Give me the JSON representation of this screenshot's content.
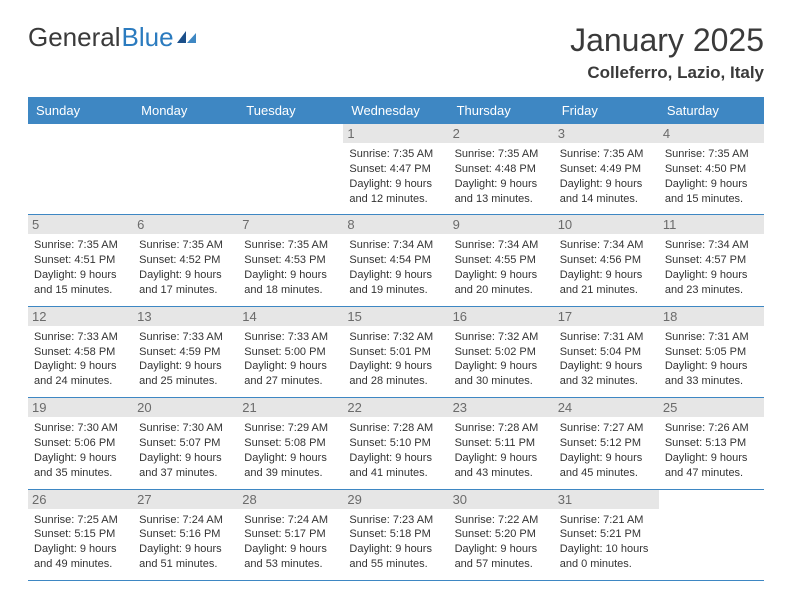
{
  "logo": {
    "text1": "General",
    "text2": "Blue"
  },
  "title": "January 2025",
  "location": "Colleferro, Lazio, Italy",
  "colors": {
    "header_bg": "#3e87c3",
    "header_text": "#ffffff",
    "daynum_bg": "#e6e6e6",
    "daynum_text": "#6b6b6b",
    "body_text": "#333333",
    "divider": "#3e87c3",
    "logo_gray": "#3a3a3a",
    "logo_blue": "#2b7bbf"
  },
  "day_names": [
    "Sunday",
    "Monday",
    "Tuesday",
    "Wednesday",
    "Thursday",
    "Friday",
    "Saturday"
  ],
  "weeks": [
    [
      null,
      null,
      null,
      {
        "n": "1",
        "sr": "7:35 AM",
        "ss": "4:47 PM",
        "dl": "9 hours and 12 minutes."
      },
      {
        "n": "2",
        "sr": "7:35 AM",
        "ss": "4:48 PM",
        "dl": "9 hours and 13 minutes."
      },
      {
        "n": "3",
        "sr": "7:35 AM",
        "ss": "4:49 PM",
        "dl": "9 hours and 14 minutes."
      },
      {
        "n": "4",
        "sr": "7:35 AM",
        "ss": "4:50 PM",
        "dl": "9 hours and 15 minutes."
      }
    ],
    [
      {
        "n": "5",
        "sr": "7:35 AM",
        "ss": "4:51 PM",
        "dl": "9 hours and 15 minutes."
      },
      {
        "n": "6",
        "sr": "7:35 AM",
        "ss": "4:52 PM",
        "dl": "9 hours and 17 minutes."
      },
      {
        "n": "7",
        "sr": "7:35 AM",
        "ss": "4:53 PM",
        "dl": "9 hours and 18 minutes."
      },
      {
        "n": "8",
        "sr": "7:34 AM",
        "ss": "4:54 PM",
        "dl": "9 hours and 19 minutes."
      },
      {
        "n": "9",
        "sr": "7:34 AM",
        "ss": "4:55 PM",
        "dl": "9 hours and 20 minutes."
      },
      {
        "n": "10",
        "sr": "7:34 AM",
        "ss": "4:56 PM",
        "dl": "9 hours and 21 minutes."
      },
      {
        "n": "11",
        "sr": "7:34 AM",
        "ss": "4:57 PM",
        "dl": "9 hours and 23 minutes."
      }
    ],
    [
      {
        "n": "12",
        "sr": "7:33 AM",
        "ss": "4:58 PM",
        "dl": "9 hours and 24 minutes."
      },
      {
        "n": "13",
        "sr": "7:33 AM",
        "ss": "4:59 PM",
        "dl": "9 hours and 25 minutes."
      },
      {
        "n": "14",
        "sr": "7:33 AM",
        "ss": "5:00 PM",
        "dl": "9 hours and 27 minutes."
      },
      {
        "n": "15",
        "sr": "7:32 AM",
        "ss": "5:01 PM",
        "dl": "9 hours and 28 minutes."
      },
      {
        "n": "16",
        "sr": "7:32 AM",
        "ss": "5:02 PM",
        "dl": "9 hours and 30 minutes."
      },
      {
        "n": "17",
        "sr": "7:31 AM",
        "ss": "5:04 PM",
        "dl": "9 hours and 32 minutes."
      },
      {
        "n": "18",
        "sr": "7:31 AM",
        "ss": "5:05 PM",
        "dl": "9 hours and 33 minutes."
      }
    ],
    [
      {
        "n": "19",
        "sr": "7:30 AM",
        "ss": "5:06 PM",
        "dl": "9 hours and 35 minutes."
      },
      {
        "n": "20",
        "sr": "7:30 AM",
        "ss": "5:07 PM",
        "dl": "9 hours and 37 minutes."
      },
      {
        "n": "21",
        "sr": "7:29 AM",
        "ss": "5:08 PM",
        "dl": "9 hours and 39 minutes."
      },
      {
        "n": "22",
        "sr": "7:28 AM",
        "ss": "5:10 PM",
        "dl": "9 hours and 41 minutes."
      },
      {
        "n": "23",
        "sr": "7:28 AM",
        "ss": "5:11 PM",
        "dl": "9 hours and 43 minutes."
      },
      {
        "n": "24",
        "sr": "7:27 AM",
        "ss": "5:12 PM",
        "dl": "9 hours and 45 minutes."
      },
      {
        "n": "25",
        "sr": "7:26 AM",
        "ss": "5:13 PM",
        "dl": "9 hours and 47 minutes."
      }
    ],
    [
      {
        "n": "26",
        "sr": "7:25 AM",
        "ss": "5:15 PM",
        "dl": "9 hours and 49 minutes."
      },
      {
        "n": "27",
        "sr": "7:24 AM",
        "ss": "5:16 PM",
        "dl": "9 hours and 51 minutes."
      },
      {
        "n": "28",
        "sr": "7:24 AM",
        "ss": "5:17 PM",
        "dl": "9 hours and 53 minutes."
      },
      {
        "n": "29",
        "sr": "7:23 AM",
        "ss": "5:18 PM",
        "dl": "9 hours and 55 minutes."
      },
      {
        "n": "30",
        "sr": "7:22 AM",
        "ss": "5:20 PM",
        "dl": "9 hours and 57 minutes."
      },
      {
        "n": "31",
        "sr": "7:21 AM",
        "ss": "5:21 PM",
        "dl": "10 hours and 0 minutes."
      },
      null
    ]
  ],
  "labels": {
    "sunrise": "Sunrise:",
    "sunset": "Sunset:",
    "daylight": "Daylight:"
  }
}
